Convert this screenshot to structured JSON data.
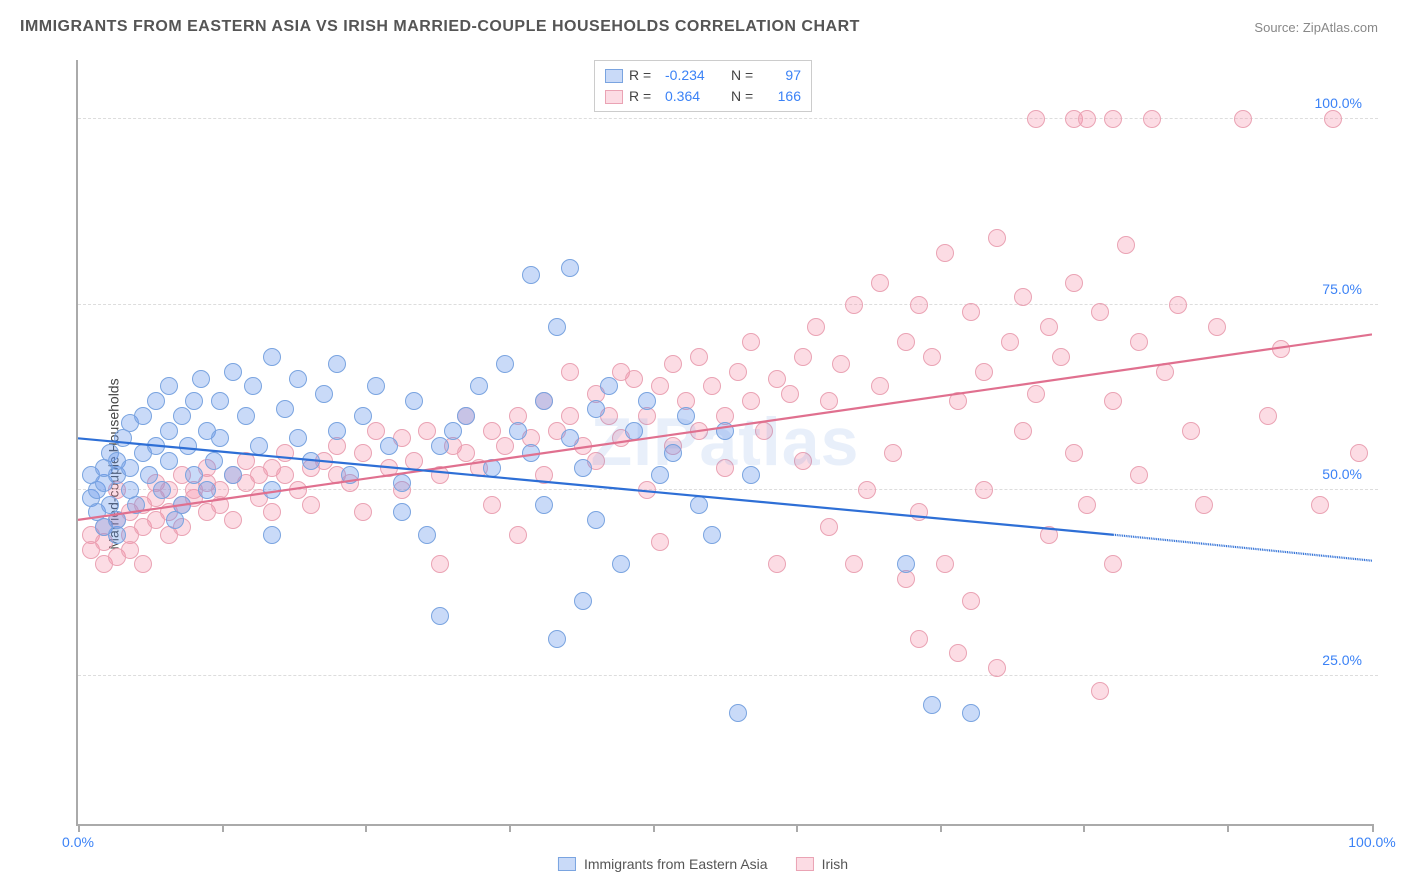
{
  "title": "IMMIGRANTS FROM EASTERN ASIA VS IRISH MARRIED-COUPLE HOUSEHOLDS CORRELATION CHART",
  "source_label": "Source:",
  "source_name": "ZipAtlas.com",
  "watermark": "ZIPatlas",
  "y_axis_label": "Married-couple Households",
  "legend": {
    "series1": {
      "r_label": "R =",
      "r_value": "-0.234",
      "n_label": "N =",
      "n_value": "97"
    },
    "series2": {
      "r_label": "R =",
      "r_value": "0.364",
      "n_label": "N =",
      "n_value": "166"
    }
  },
  "bottom_legend": {
    "series1": "Immigrants from Eastern Asia",
    "series2": "Irish"
  },
  "colors": {
    "series1_fill": "rgba(100,150,235,0.35)",
    "series1_stroke": "#7aa4e0",
    "series2_fill": "rgba(245,140,165,0.30)",
    "series2_stroke": "#eaa3b4",
    "line1": "#2e6fd6",
    "line2": "#e0708f",
    "axis_text": "#3b82f6"
  },
  "chart": {
    "type": "scatter",
    "xlim": [
      0,
      100
    ],
    "ylim": [
      5,
      108
    ],
    "y_ticks": [
      25,
      50,
      75,
      100
    ],
    "y_tick_labels": [
      "25.0%",
      "50.0%",
      "75.0%",
      "100.0%"
    ],
    "x_ticks": [
      0,
      11.1,
      22.2,
      33.3,
      44.4,
      55.5,
      66.6,
      77.7,
      88.8,
      100
    ],
    "x_tick_labels": {
      "0": "0.0%",
      "100": "100.0%"
    },
    "marker_radius": 9,
    "trend1": {
      "y_at_x0": 57,
      "y_at_x80": 44,
      "dashed_to_x": 100,
      "y_at_x100": 40.5
    },
    "trend2": {
      "y_at_x0": 46,
      "y_at_x100": 71
    }
  },
  "series1_points": [
    [
      1,
      49
    ],
    [
      1,
      52
    ],
    [
      1.5,
      47
    ],
    [
      1.5,
      50
    ],
    [
      2,
      45
    ],
    [
      2,
      51
    ],
    [
      2,
      53
    ],
    [
      2.5,
      48
    ],
    [
      2.5,
      55
    ],
    [
      3,
      44
    ],
    [
      3,
      46
    ],
    [
      3,
      52
    ],
    [
      3,
      54
    ],
    [
      3.5,
      57
    ],
    [
      4,
      50
    ],
    [
      4,
      53
    ],
    [
      4,
      59
    ],
    [
      4.5,
      48
    ],
    [
      5,
      55
    ],
    [
      5,
      60
    ],
    [
      5.5,
      52
    ],
    [
      6,
      56
    ],
    [
      6,
      62
    ],
    [
      6.5,
      50
    ],
    [
      7,
      54
    ],
    [
      7,
      58
    ],
    [
      7,
      64
    ],
    [
      7.5,
      46
    ],
    [
      8,
      60
    ],
    [
      8,
      48
    ],
    [
      8.5,
      56
    ],
    [
      9,
      62
    ],
    [
      9,
      52
    ],
    [
      9.5,
      65
    ],
    [
      10,
      58
    ],
    [
      10,
      50
    ],
    [
      10.5,
      54
    ],
    [
      11,
      62
    ],
    [
      11,
      57
    ],
    [
      12,
      66
    ],
    [
      12,
      52
    ],
    [
      13,
      60
    ],
    [
      13.5,
      64
    ],
    [
      14,
      56
    ],
    [
      15,
      68
    ],
    [
      15,
      50
    ],
    [
      15,
      44
    ],
    [
      16,
      61
    ],
    [
      17,
      65
    ],
    [
      17,
      57
    ],
    [
      18,
      54
    ],
    [
      19,
      63
    ],
    [
      20,
      58
    ],
    [
      20,
      67
    ],
    [
      21,
      52
    ],
    [
      22,
      60
    ],
    [
      23,
      64
    ],
    [
      24,
      56
    ],
    [
      25,
      51
    ],
    [
      25,
      47
    ],
    [
      26,
      62
    ],
    [
      27,
      44
    ],
    [
      28,
      56
    ],
    [
      28,
      33
    ],
    [
      29,
      58
    ],
    [
      30,
      60
    ],
    [
      31,
      64
    ],
    [
      32,
      53
    ],
    [
      33,
      67
    ],
    [
      34,
      58
    ],
    [
      35,
      79
    ],
    [
      35,
      55
    ],
    [
      36,
      48
    ],
    [
      36,
      62
    ],
    [
      37,
      72
    ],
    [
      37,
      30
    ],
    [
      38,
      57
    ],
    [
      38,
      80
    ],
    [
      39,
      53
    ],
    [
      39,
      35
    ],
    [
      40,
      61
    ],
    [
      40,
      46
    ],
    [
      41,
      64
    ],
    [
      42,
      40
    ],
    [
      43,
      58
    ],
    [
      44,
      62
    ],
    [
      45,
      52
    ],
    [
      46,
      55
    ],
    [
      47,
      60
    ],
    [
      48,
      48
    ],
    [
      49,
      44
    ],
    [
      50,
      58
    ],
    [
      51,
      20
    ],
    [
      52,
      52
    ],
    [
      64,
      40
    ],
    [
      66,
      21
    ],
    [
      69,
      20
    ]
  ],
  "series2_points": [
    [
      1,
      44
    ],
    [
      1,
      42
    ],
    [
      2,
      45
    ],
    [
      2,
      43
    ],
    [
      2,
      40
    ],
    [
      3,
      46
    ],
    [
      3,
      41
    ],
    [
      3,
      50
    ],
    [
      4,
      44
    ],
    [
      4,
      47
    ],
    [
      4,
      42
    ],
    [
      5,
      48
    ],
    [
      5,
      45
    ],
    [
      5,
      40
    ],
    [
      6,
      49
    ],
    [
      6,
      46
    ],
    [
      6,
      51
    ],
    [
      7,
      47
    ],
    [
      7,
      50
    ],
    [
      7,
      44
    ],
    [
      8,
      48
    ],
    [
      8,
      52
    ],
    [
      8,
      45
    ],
    [
      9,
      49
    ],
    [
      9,
      50
    ],
    [
      10,
      51
    ],
    [
      10,
      47
    ],
    [
      10,
      53
    ],
    [
      11,
      50
    ],
    [
      11,
      48
    ],
    [
      12,
      52
    ],
    [
      12,
      46
    ],
    [
      13,
      51
    ],
    [
      13,
      54
    ],
    [
      14,
      49
    ],
    [
      14,
      52
    ],
    [
      15,
      53
    ],
    [
      15,
      47
    ],
    [
      16,
      52
    ],
    [
      16,
      55
    ],
    [
      17,
      50
    ],
    [
      18,
      53
    ],
    [
      18,
      48
    ],
    [
      19,
      54
    ],
    [
      20,
      52
    ],
    [
      20,
      56
    ],
    [
      21,
      51
    ],
    [
      22,
      55
    ],
    [
      22,
      47
    ],
    [
      23,
      58
    ],
    [
      24,
      53
    ],
    [
      25,
      57
    ],
    [
      25,
      50
    ],
    [
      26,
      54
    ],
    [
      27,
      58
    ],
    [
      28,
      52
    ],
    [
      28,
      40
    ],
    [
      29,
      56
    ],
    [
      30,
      55
    ],
    [
      30,
      60
    ],
    [
      31,
      53
    ],
    [
      32,
      58
    ],
    [
      32,
      48
    ],
    [
      33,
      56
    ],
    [
      34,
      60
    ],
    [
      34,
      44
    ],
    [
      35,
      57
    ],
    [
      36,
      62
    ],
    [
      36,
      52
    ],
    [
      37,
      58
    ],
    [
      38,
      60
    ],
    [
      38,
      66
    ],
    [
      39,
      56
    ],
    [
      40,
      63
    ],
    [
      40,
      54
    ],
    [
      41,
      60
    ],
    [
      42,
      57
    ],
    [
      42,
      66
    ],
    [
      43,
      65
    ],
    [
      44,
      60
    ],
    [
      44,
      50
    ],
    [
      45,
      64
    ],
    [
      45,
      43
    ],
    [
      46,
      67
    ],
    [
      46,
      56
    ],
    [
      47,
      62
    ],
    [
      48,
      58
    ],
    [
      48,
      68
    ],
    [
      49,
      64
    ],
    [
      50,
      60
    ],
    [
      50,
      53
    ],
    [
      51,
      66
    ],
    [
      52,
      62
    ],
    [
      52,
      70
    ],
    [
      53,
      58
    ],
    [
      54,
      65
    ],
    [
      54,
      40
    ],
    [
      55,
      63
    ],
    [
      56,
      68
    ],
    [
      56,
      54
    ],
    [
      57,
      72
    ],
    [
      58,
      62
    ],
    [
      58,
      45
    ],
    [
      59,
      67
    ],
    [
      60,
      75
    ],
    [
      60,
      40
    ],
    [
      61,
      50
    ],
    [
      62,
      64
    ],
    [
      62,
      78
    ],
    [
      63,
      55
    ],
    [
      64,
      70
    ],
    [
      64,
      38
    ],
    [
      65,
      75
    ],
    [
      65,
      47
    ],
    [
      65,
      30
    ],
    [
      66,
      68
    ],
    [
      67,
      82
    ],
    [
      67,
      40
    ],
    [
      68,
      62
    ],
    [
      68,
      28
    ],
    [
      69,
      74
    ],
    [
      69,
      35
    ],
    [
      70,
      66
    ],
    [
      70,
      50
    ],
    [
      71,
      84
    ],
    [
      71,
      26
    ],
    [
      72,
      70
    ],
    [
      73,
      58
    ],
    [
      73,
      76
    ],
    [
      74,
      100
    ],
    [
      74,
      63
    ],
    [
      75,
      72
    ],
    [
      75,
      44
    ],
    [
      76,
      68
    ],
    [
      77,
      100
    ],
    [
      77,
      55
    ],
    [
      77,
      78
    ],
    [
      78,
      100
    ],
    [
      78,
      48
    ],
    [
      79,
      74
    ],
    [
      79,
      23
    ],
    [
      80,
      100
    ],
    [
      80,
      62
    ],
    [
      80,
      40
    ],
    [
      81,
      83
    ],
    [
      82,
      70
    ],
    [
      82,
      52
    ],
    [
      83,
      100
    ],
    [
      84,
      66
    ],
    [
      85,
      75
    ],
    [
      86,
      58
    ],
    [
      87,
      48
    ],
    [
      88,
      72
    ],
    [
      90,
      100
    ],
    [
      92,
      60
    ],
    [
      93,
      69
    ],
    [
      96,
      48
    ],
    [
      97,
      100
    ],
    [
      99,
      55
    ]
  ]
}
